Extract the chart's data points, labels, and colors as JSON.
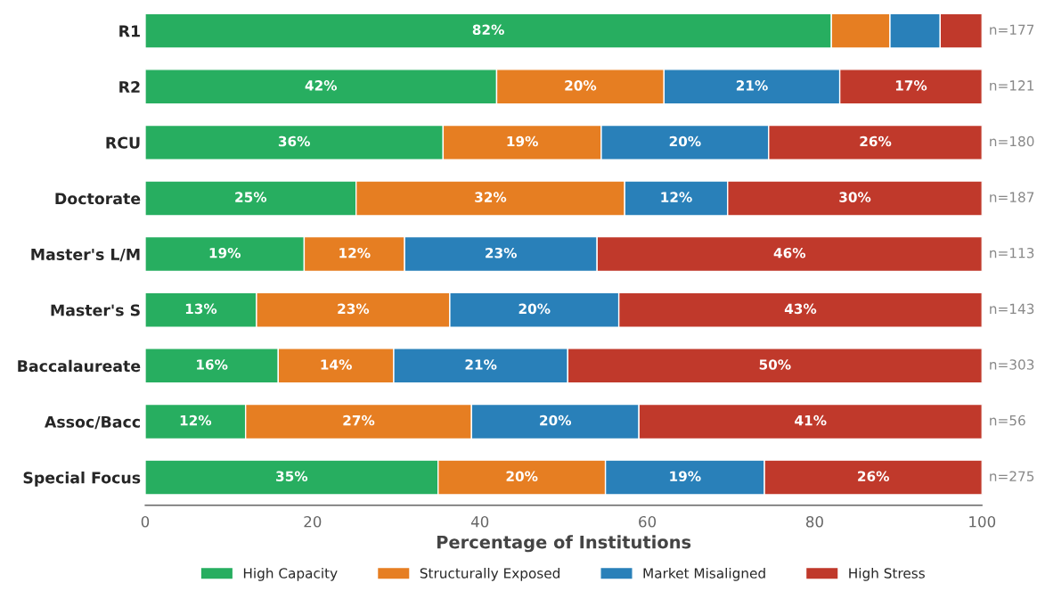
{
  "chart_data": {
    "type": "bar",
    "orientation": "horizontal",
    "stacked": true,
    "xlabel": "Percentage of Institutions",
    "categories": [
      "R1",
      "R2",
      "RCU",
      "Doctorate",
      "Master's L/M",
      "Master's S",
      "Baccalaureate",
      "Assoc/Bacc",
      "Special Focus"
    ],
    "series": [
      {
        "name": "High Capacity",
        "color": "#27ae60",
        "values": [
          82,
          42,
          35.6,
          25.2,
          19,
          13.3,
          15.9,
          12,
          35
        ],
        "value_labels": [
          "82%",
          "42%",
          "36%",
          "25%",
          "19%",
          "13%",
          "16%",
          "12%",
          "35%"
        ]
      },
      {
        "name": "Structurally Exposed",
        "color": "#e67e22",
        "values": [
          7,
          20,
          18.9,
          32.1,
          12,
          23.1,
          13.8,
          27,
          20
        ],
        "value_labels": [
          null,
          "20%",
          "19%",
          "32%",
          "12%",
          "23%",
          "14%",
          "27%",
          "20%"
        ]
      },
      {
        "name": "Market Misaligned",
        "color": "#2980b9",
        "values": [
          6,
          21,
          20,
          12.3,
          23,
          20.2,
          20.8,
          20,
          19
        ],
        "value_labels": [
          null,
          "21%",
          "20%",
          "12%",
          "23%",
          "20%",
          "21%",
          "20%",
          "19%"
        ]
      },
      {
        "name": "High Stress",
        "color": "#c0392b",
        "values": [
          5,
          17,
          25.5,
          30.4,
          46,
          43.4,
          49.5,
          41,
          26
        ],
        "value_labels": [
          null,
          "17%",
          "26%",
          "30%",
          "46%",
          "43%",
          "50%",
          "41%",
          "26%"
        ]
      }
    ],
    "xlim": [
      0,
      100
    ],
    "xticks": [
      0,
      20,
      40,
      60,
      80,
      100
    ],
    "grid": false,
    "legend": "bottom",
    "annotations": [
      "n=177",
      "n=121",
      "n=180",
      "n=187",
      "n=113",
      "n=143",
      "n=303",
      "n=56",
      "n=275"
    ]
  }
}
